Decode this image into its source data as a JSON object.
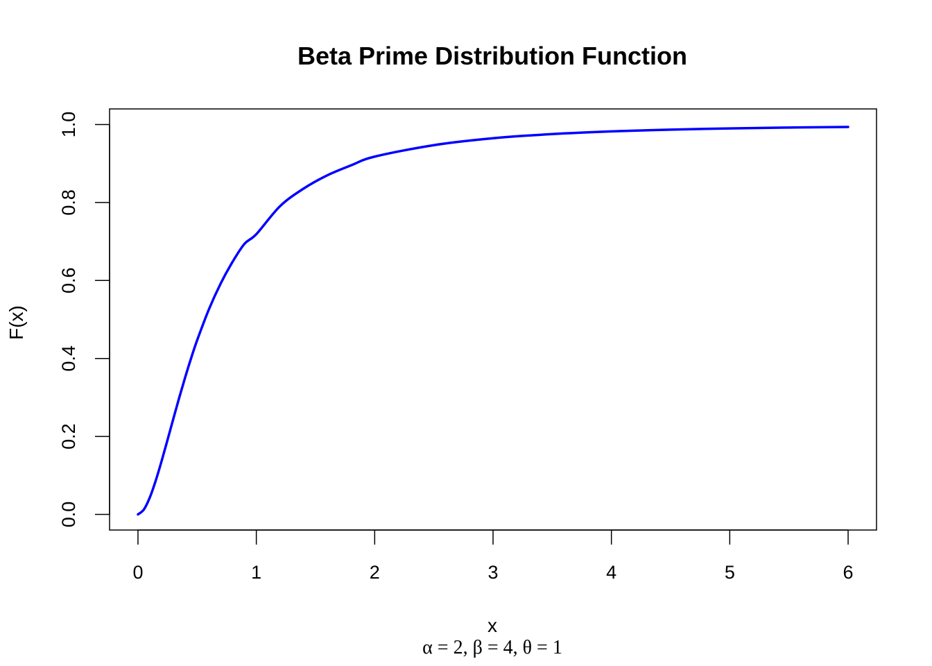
{
  "chart_data": {
    "type": "line",
    "title": "Beta Prime Distribution Function",
    "xlabel": "x",
    "ylabel": "F(x)",
    "subtitle": "α = 2, β = 4, θ = 1",
    "xlim": [
      -0.24,
      6.24
    ],
    "ylim": [
      -0.04,
      1.04
    ],
    "x_ticks": [
      0,
      1,
      2,
      3,
      4,
      5,
      6
    ],
    "y_ticks": [
      0.0,
      0.2,
      0.4,
      0.6,
      0.8,
      1.0
    ],
    "x_tick_labels": [
      "0",
      "1",
      "2",
      "3",
      "4",
      "5",
      "6"
    ],
    "y_tick_labels": [
      "0.0",
      "0.2",
      "0.4",
      "0.6",
      "0.8",
      "1.0"
    ],
    "grid": false,
    "series": [
      {
        "color": "#0000ff",
        "x": [
          0,
          0.05,
          0.1,
          0.15,
          0.2,
          0.25,
          0.3,
          0.35,
          0.4,
          0.45,
          0.5,
          0.6,
          0.7,
          0.8,
          0.9,
          1.0,
          1.2,
          1.4,
          1.6,
          1.8,
          2.0,
          2.5,
          3.0,
          3.5,
          4.0,
          4.5,
          5.0,
          5.5,
          6.0
        ],
        "y": [
          0.0,
          0.0128,
          0.0435,
          0.0867,
          0.1372,
          0.1915,
          0.2467,
          0.3009,
          0.3528,
          0.4016,
          0.4468,
          0.5265,
          0.593,
          0.6482,
          0.6939,
          0.7188,
          0.7905,
          0.8358,
          0.8698,
          0.8952,
          0.9177,
          0.9471,
          0.9648,
          0.9755,
          0.9824,
          0.9869,
          0.99,
          0.9922,
          0.9938
        ]
      }
    ]
  }
}
